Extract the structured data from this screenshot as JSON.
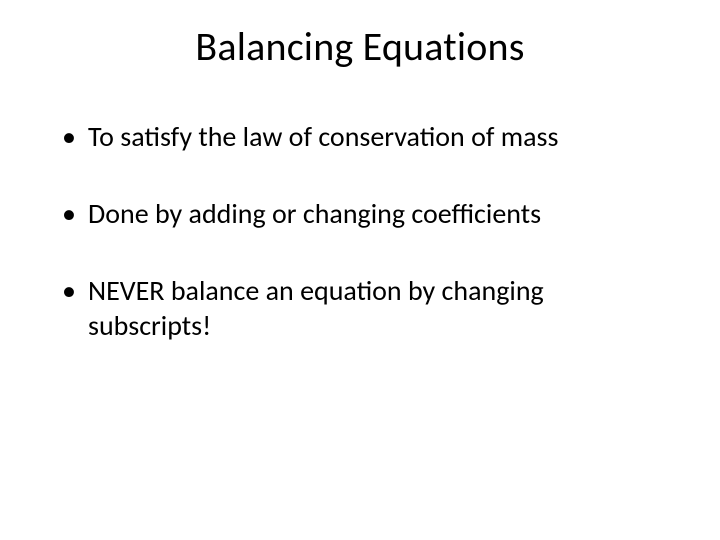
{
  "slide": {
    "title": "Balancing Equations",
    "bullets": [
      "To satisfy the law of conservation of mass",
      "Done by adding or changing coefficients",
      "NEVER balance an equation by changing subscripts!"
    ],
    "styling": {
      "title_fontsize": 40,
      "title_color": "#000000",
      "title_align": "center",
      "body_fontsize": 28,
      "body_color": "#000000",
      "background_color": "#ffffff",
      "font_family": "Calibri",
      "bullet_marker": "•",
      "bullet_spacing": 42
    }
  }
}
